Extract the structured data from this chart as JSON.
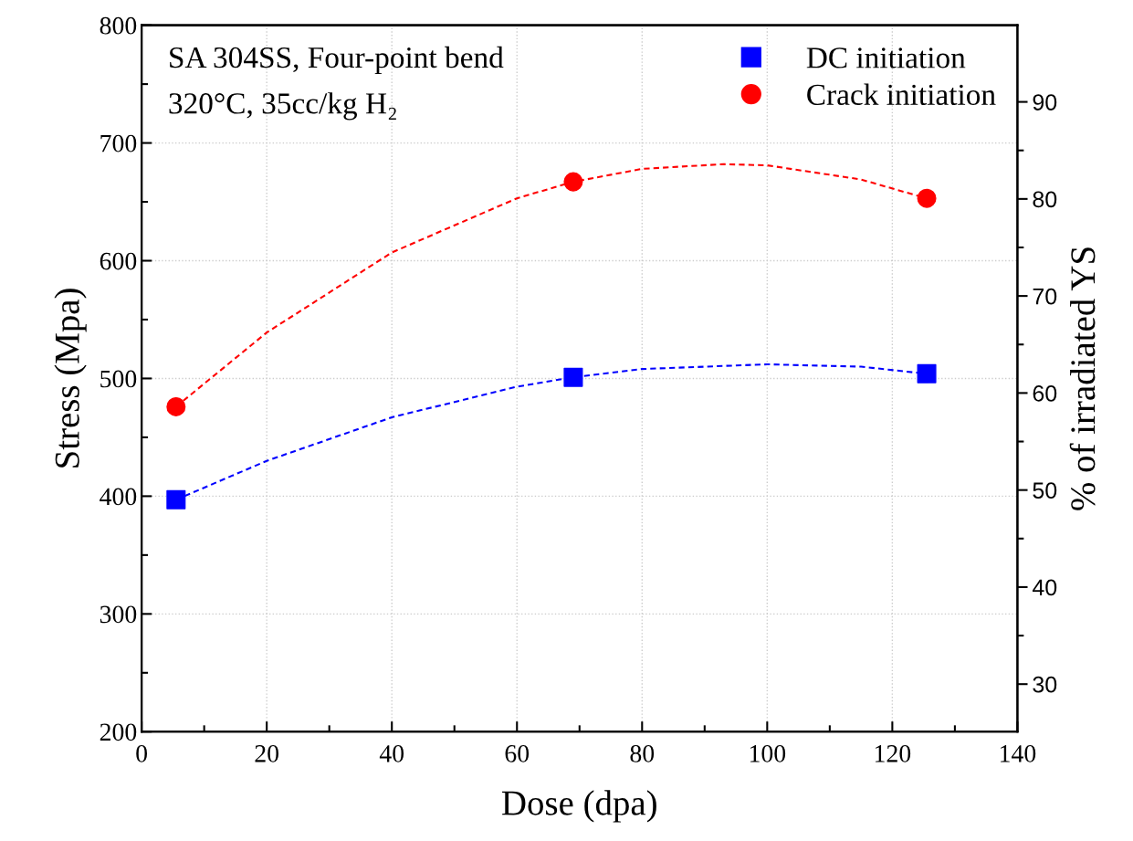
{
  "chart_data": {
    "type": "scatter",
    "xlabel": "Dose (dpa)",
    "ylabel": "Stress (Mpa)",
    "y2label": "% of irradiated YS",
    "annotations": [
      "SA 304SS, Four-point bend",
      "320°C, 35cc/kg H₂"
    ],
    "xlim": [
      0,
      140
    ],
    "xticks": [
      0,
      20,
      40,
      60,
      80,
      100,
      120,
      140
    ],
    "ylim": [
      200,
      800
    ],
    "yticks": [
      200,
      300,
      400,
      500,
      600,
      700,
      800
    ],
    "y2lim": [
      25.1,
      97.9
    ],
    "y2ticks": [
      30,
      40,
      50,
      60,
      70,
      80,
      90
    ],
    "grid": true,
    "legend": "top right",
    "series": [
      {
        "type": "line",
        "color": "#0000ff",
        "line_style": "dashed",
        "marker": "none",
        "x": [
          5.5,
          20,
          40,
          60,
          69,
          80,
          100,
          115,
          125.5
        ],
        "values": [
          397,
          430,
          467,
          493,
          501,
          508,
          512,
          510,
          504
        ]
      },
      {
        "type": "line",
        "color": "#ff0000",
        "line_style": "dashed",
        "marker": "none",
        "x": [
          5.5,
          20,
          40,
          60,
          69,
          80,
          93,
          100,
          115,
          125.5
        ],
        "values": [
          476,
          539,
          607,
          653,
          667,
          678,
          682,
          681,
          669,
          653
        ]
      },
      {
        "name": "DC initiation",
        "color": "#0000ff",
        "marker": "square",
        "x": [
          5.5,
          69,
          125.5
        ],
        "values": [
          397,
          501,
          504
        ]
      },
      {
        "name": "Crack initiation",
        "color": "#ff0000",
        "marker": "circle",
        "x": [
          5.5,
          69,
          125.5
        ],
        "values": [
          476,
          667,
          653
        ]
      }
    ]
  }
}
